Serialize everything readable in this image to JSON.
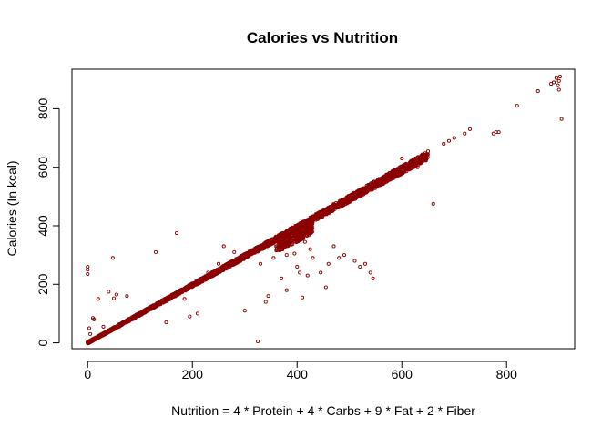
{
  "chart_data": {
    "type": "scatter",
    "title": "Calories vs Nutrition",
    "xlabel": "Nutrition = 4 * Protein + 4 * Carbs + 9 * Fat + 2 * Fiber",
    "ylabel": "Calories (In kcal)",
    "xlim": [
      -30,
      930
    ],
    "ylim": [
      -20,
      935
    ],
    "x_ticks": [
      0,
      200,
      400,
      600,
      800
    ],
    "y_ticks": [
      0,
      200,
      400,
      600,
      800
    ],
    "x_tick_labels": [
      "0",
      "200",
      "400",
      "600",
      "800"
    ],
    "y_tick_labels": [
      "0",
      "200",
      "400",
      "600",
      "800"
    ],
    "grid": false,
    "legend": "none",
    "marker": "open-circle",
    "point_color": "#8b0000",
    "series": [
      {
        "points": [
          [
            0,
            260
          ],
          [
            0,
            250
          ],
          [
            0,
            235
          ],
          [
            3,
            50
          ],
          [
            5,
            30
          ],
          [
            10,
            85
          ],
          [
            12,
            80
          ],
          [
            20,
            150
          ],
          [
            30,
            55
          ],
          [
            40,
            175
          ],
          [
            48,
            290
          ],
          [
            50,
            152
          ],
          [
            55,
            165
          ],
          [
            75,
            160
          ],
          [
            130,
            310
          ],
          [
            150,
            70
          ],
          [
            170,
            375
          ],
          [
            185,
            150
          ],
          [
            195,
            90
          ],
          [
            210,
            100
          ],
          [
            260,
            330
          ],
          [
            300,
            110
          ],
          [
            330,
            270
          ],
          [
            345,
            160
          ],
          [
            340,
            140
          ],
          [
            370,
            220
          ],
          [
            380,
            180
          ],
          [
            395,
            305
          ],
          [
            400,
            260
          ],
          [
            405,
            240
          ],
          [
            410,
            155
          ],
          [
            420,
            230
          ],
          [
            430,
            290
          ],
          [
            445,
            240
          ],
          [
            455,
            190
          ],
          [
            460,
            270
          ],
          [
            470,
            330
          ],
          [
            480,
            290
          ],
          [
            490,
            300
          ],
          [
            510,
            280
          ],
          [
            520,
            260
          ],
          [
            540,
            240
          ],
          [
            545,
            220
          ],
          [
            530,
            270
          ],
          [
            325,
            5
          ],
          [
            415,
            345
          ],
          [
            425,
            320
          ],
          [
            380,
            300
          ],
          [
            360,
            330
          ],
          [
            355,
            290
          ],
          [
            300,
            300
          ],
          [
            280,
            310
          ],
          [
            250,
            270
          ],
          [
            230,
            240
          ],
          [
            660,
            475
          ],
          [
            600,
            630
          ],
          [
            720,
            715
          ],
          [
            560,
            540
          ],
          [
            630,
            600
          ],
          [
            680,
            680
          ],
          [
            690,
            690
          ],
          [
            700,
            700
          ],
          [
            730,
            730
          ],
          [
            780,
            720
          ],
          [
            775,
            715
          ],
          [
            785,
            720
          ],
          [
            820,
            810
          ],
          [
            860,
            860
          ],
          [
            890,
            890
          ],
          [
            895,
            905
          ],
          [
            898,
            880
          ],
          [
            900,
            895
          ],
          [
            900,
            865
          ],
          [
            902,
            910
          ],
          [
            905,
            765
          ],
          [
            885,
            885
          ]
        ]
      }
    ]
  }
}
